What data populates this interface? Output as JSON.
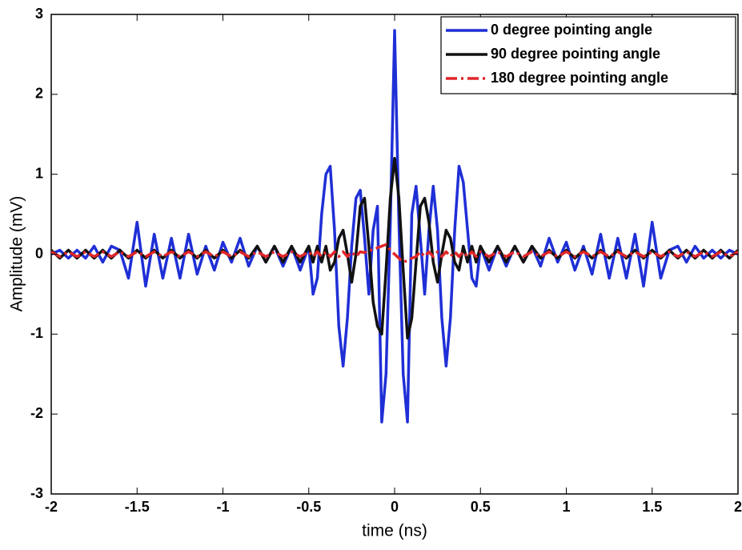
{
  "chart_data": {
    "type": "line",
    "xlabel": "time (ns)",
    "ylabel": "Amplitude (mV)",
    "xlim": [
      -2,
      2
    ],
    "ylim": [
      -3,
      3
    ],
    "xticks": [
      -2,
      -1.5,
      -1,
      -0.5,
      0,
      0.5,
      1,
      1.5,
      2
    ],
    "yticks": [
      -3,
      -2,
      -1,
      0,
      1,
      2,
      3
    ],
    "legend": "upper right",
    "x": [
      -2,
      -1.95,
      -1.9,
      -1.85,
      -1.8,
      -1.75,
      -1.7,
      -1.65,
      -1.6,
      -1.55,
      -1.5,
      -1.45,
      -1.4,
      -1.35,
      -1.3,
      -1.25,
      -1.2,
      -1.15,
      -1.1,
      -1.05,
      -1,
      -0.95,
      -0.9,
      -0.85,
      -0.8,
      -0.75,
      -0.7,
      -0.65,
      -0.6,
      -0.55,
      -0.5,
      -0.475,
      -0.45,
      -0.425,
      -0.4,
      -0.375,
      -0.35,
      -0.325,
      -0.3,
      -0.275,
      -0.25,
      -0.225,
      -0.2,
      -0.175,
      -0.15,
      -0.125,
      -0.1,
      -0.075,
      -0.05,
      -0.025,
      0,
      0.025,
      0.05,
      0.075,
      0.1,
      0.125,
      0.15,
      0.175,
      0.2,
      0.225,
      0.25,
      0.275,
      0.3,
      0.325,
      0.35,
      0.375,
      0.4,
      0.425,
      0.45,
      0.475,
      0.5,
      0.55,
      0.6,
      0.65,
      0.7,
      0.75,
      0.8,
      0.85,
      0.9,
      0.95,
      1,
      1.05,
      1.1,
      1.15,
      1.2,
      1.25,
      1.3,
      1.35,
      1.4,
      1.45,
      1.5,
      1.55,
      1.6,
      1.65,
      1.7,
      1.75,
      1.8,
      1.85,
      1.9,
      1.95,
      2
    ],
    "series": [
      {
        "name": "0 degree pointing angle",
        "color": "#1f2fd6",
        "style": "solid",
        "values": [
          0,
          0.05,
          -0.05,
          0.05,
          -0.05,
          0.1,
          -0.1,
          0.1,
          0.05,
          -0.3,
          0.4,
          -0.4,
          0.25,
          -0.3,
          0.2,
          -0.3,
          0.25,
          -0.25,
          0.1,
          -0.2,
          0.15,
          -0.1,
          0.2,
          -0.15,
          0.1,
          -0.1,
          0.1,
          -0.15,
          0.1,
          -0.2,
          0.1,
          -0.5,
          -0.3,
          0.5,
          1.0,
          1.1,
          0.3,
          -0.9,
          -1.4,
          -0.8,
          0.1,
          0.7,
          0.8,
          0.2,
          -0.5,
          0.3,
          0.6,
          -2.1,
          -1.5,
          0.4,
          2.8,
          0.4,
          -1.5,
          -2.1,
          0.5,
          0.85,
          0.2,
          -0.5,
          0.3,
          0.85,
          0.3,
          -0.8,
          -1.4,
          -0.8,
          0.3,
          1.1,
          0.9,
          0.3,
          -0.3,
          -0.4,
          0.1,
          -0.2,
          0.1,
          -0.15,
          0.1,
          -0.1,
          0.1,
          -0.15,
          0.2,
          -0.1,
          0.15,
          -0.2,
          0.1,
          -0.25,
          0.25,
          -0.3,
          0.2,
          -0.3,
          0.25,
          -0.4,
          0.4,
          -0.3,
          0.05,
          0.1,
          -0.1,
          0.1,
          -0.05,
          0.05,
          -0.05,
          0.05,
          0
        ]
      },
      {
        "name": "90 degree pointing angle",
        "color": "#111111",
        "style": "solid",
        "values": [
          0.05,
          -0.05,
          0.05,
          -0.05,
          0.05,
          -0.05,
          0.05,
          -0.05,
          0.05,
          -0.05,
          0.05,
          -0.05,
          0.05,
          -0.05,
          0.05,
          -0.05,
          0.05,
          -0.05,
          0.05,
          -0.05,
          0.05,
          -0.05,
          0.05,
          -0.05,
          0.1,
          -0.1,
          0.1,
          -0.1,
          0.1,
          -0.1,
          0.1,
          -0.1,
          0.1,
          -0.1,
          0.1,
          -0.2,
          -0.1,
          0.2,
          0.3,
          0,
          -0.35,
          0,
          0.6,
          0.7,
          0.1,
          -0.6,
          -0.9,
          -1.0,
          -0.2,
          0.7,
          1.2,
          0.7,
          -0.2,
          -1.05,
          -0.8,
          -0.1,
          0.6,
          0.7,
          0.4,
          -0.1,
          -0.35,
          0,
          0.3,
          0.2,
          -0.1,
          -0.2,
          0.1,
          -0.1,
          0.1,
          -0.1,
          0.1,
          -0.1,
          0.1,
          -0.1,
          0.1,
          -0.1,
          0.1,
          -0.05,
          0.05,
          -0.05,
          0.05,
          -0.05,
          0.05,
          -0.05,
          0.05,
          -0.05,
          0.05,
          -0.05,
          0.05,
          -0.05,
          0.05,
          -0.05,
          0.05,
          -0.05,
          0.05,
          -0.05,
          0.05,
          -0.05,
          0.05,
          -0.05,
          0.05
        ]
      },
      {
        "name": "180 degree pointing angle",
        "color": "#e0262a",
        "style": "dashdot",
        "values": [
          0.03,
          -0.03,
          0.03,
          -0.03,
          0.03,
          -0.03,
          0.03,
          -0.03,
          0.03,
          -0.03,
          0.03,
          -0.03,
          0.03,
          -0.03,
          0.03,
          -0.03,
          0.03,
          -0.03,
          0.03,
          -0.03,
          0.03,
          -0.03,
          0.03,
          -0.03,
          0.03,
          -0.03,
          0.03,
          -0.03,
          0.03,
          -0.03,
          0.03,
          -0.03,
          0.03,
          -0.03,
          0.03,
          -0.03,
          0.03,
          -0.03,
          0.03,
          -0.03,
          0.03,
          -0.03,
          0.03,
          0.02,
          0.05,
          0.05,
          0.08,
          0.1,
          0.12,
          0.05,
          0,
          -0.05,
          -0.1,
          -0.08,
          -0.05,
          -0.03,
          0.03,
          -0.03,
          0.03,
          -0.03,
          0.03,
          -0.03,
          0.03,
          -0.03,
          0.03,
          -0.03,
          0.03,
          -0.03,
          0.03,
          -0.03,
          0.03,
          -0.03,
          0.03,
          -0.03,
          0.03,
          -0.03,
          0.03,
          -0.03,
          0.03,
          -0.03,
          0.03,
          -0.03,
          0.03,
          -0.03,
          0.03,
          -0.03,
          0.03,
          -0.03,
          0.03,
          -0.03,
          0.03,
          -0.03,
          0.03,
          -0.03,
          0.03,
          -0.03,
          0.03,
          -0.03,
          0.03,
          -0.03,
          0.03
        ]
      }
    ]
  }
}
